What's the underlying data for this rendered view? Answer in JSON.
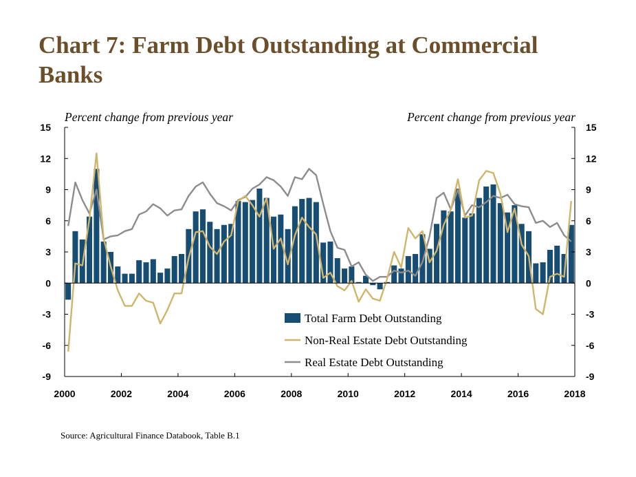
{
  "title": "Chart 7: Farm Debt Outstanding at Commercial Banks",
  "source": "Source: Agricultural Finance Databook, Table B.1",
  "colors": {
    "title": "#6b4f2a",
    "total": "#174c73",
    "nonre": "#cfb56c",
    "re": "#8c8c8c"
  },
  "chart_data": {
    "type": "bar",
    "left_axis_label": "Percent change from previous year",
    "right_axis_label": "Percent change from previous year",
    "ylim": [
      -9,
      15
    ],
    "yticks": [
      -9,
      -6,
      -3,
      0,
      3,
      6,
      9,
      12,
      15
    ],
    "xlim": [
      2000,
      2018
    ],
    "xticks": [
      "2000",
      "2002",
      "2004",
      "2006",
      "2008",
      "2010",
      "2012",
      "2014",
      "2016",
      "2018"
    ],
    "grid": false,
    "legend_position": "bottom-right",
    "series": [
      {
        "name": "Total Farm Debt Outstanding",
        "type": "bar",
        "values": [
          -1.6,
          5.0,
          4.2,
          6.4,
          11.0,
          4.0,
          3.0,
          1.6,
          0.9,
          0.9,
          2.2,
          2.0,
          2.3,
          1.0,
          1.4,
          2.6,
          2.8,
          5.2,
          6.9,
          7.1,
          5.9,
          5.2,
          5.6,
          5.7,
          7.9,
          7.8,
          8.0,
          9.1,
          8.2,
          6.4,
          6.6,
          5.2,
          7.4,
          8.1,
          8.2,
          7.8,
          3.9,
          4.0,
          2.4,
          1.4,
          1.6,
          0.1,
          0.7,
          -0.2,
          -0.6,
          0.1,
          1.7,
          1.4,
          2.6,
          2.8,
          4.7,
          3.3,
          5.7,
          7.0,
          6.9,
          9.1,
          6.3,
          6.7,
          8.2,
          9.3,
          9.5,
          7.7,
          6.8,
          7.5,
          5.7,
          5.0,
          1.9,
          2.0,
          3.2,
          3.6,
          2.8,
          5.6
        ]
      },
      {
        "name": "Non-Real Estate Debt Outstanding",
        "type": "line",
        "values": [
          -6.6,
          1.9,
          1.7,
          6.2,
          12.5,
          4.3,
          1.6,
          -0.7,
          -2.2,
          -2.2,
          -1.0,
          -1.7,
          -1.9,
          -3.9,
          -2.6,
          -1.0,
          -1.0,
          2.4,
          4.9,
          5.0,
          3.5,
          2.8,
          4.0,
          4.6,
          7.9,
          8.4,
          7.5,
          6.4,
          8.2,
          3.3,
          4.3,
          1.8,
          4.6,
          6.3,
          5.4,
          4.7,
          0.5,
          1.0,
          -0.3,
          -0.7,
          0.2,
          -1.8,
          -0.6,
          -1.5,
          -1.7,
          0.4,
          3.0,
          1.5,
          5.3,
          4.3,
          5.0,
          2.0,
          3.1,
          5.6,
          7.1,
          10.0,
          6.3,
          6.5,
          9.9,
          10.8,
          10.6,
          8.6,
          4.9,
          7.2,
          3.7,
          2.6,
          -2.5,
          -3.0,
          0.6,
          0.9,
          0.6,
          7.9
        ]
      },
      {
        "name": "Real Estate Debt Outstanding",
        "type": "line",
        "values": [
          5.5,
          9.7,
          8.0,
          6.7,
          9.0,
          4.2,
          4.5,
          4.6,
          5.0,
          5.2,
          6.6,
          6.9,
          7.6,
          7.2,
          6.5,
          7.0,
          7.1,
          8.4,
          9.3,
          9.7,
          8.6,
          7.7,
          7.4,
          7.0,
          8.0,
          8.3,
          9.1,
          9.5,
          10.2,
          9.9,
          9.3,
          8.4,
          10.2,
          10.0,
          11.0,
          10.4,
          7.6,
          5.0,
          3.4,
          3.2,
          1.6,
          2.0,
          0.8,
          0.2,
          0.6,
          0.6,
          1.2,
          1.0,
          1.2,
          0.7,
          2.0,
          4.5,
          8.2,
          8.7,
          7.1,
          9.0,
          6.5,
          7.5,
          7.3,
          7.8,
          8.4,
          8.2,
          8.5,
          7.6,
          7.4,
          7.3,
          5.8,
          6.0,
          5.4,
          5.8,
          4.6,
          4.0
        ]
      }
    ]
  }
}
